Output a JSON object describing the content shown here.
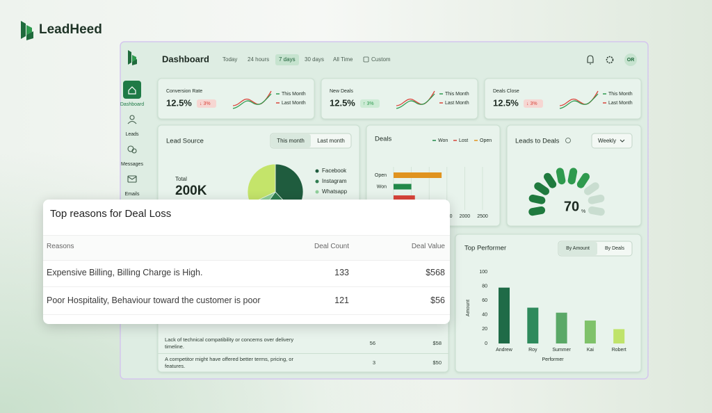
{
  "brand": "LeadHeed",
  "header": {
    "title": "Dashboard",
    "ranges": [
      "Today",
      "24 hours",
      "7 days",
      "30 days",
      "All Time",
      "Custom"
    ],
    "avatar": "OR"
  },
  "sidebar": [
    "Dashboard",
    "Leads",
    "Messages",
    "Emails"
  ],
  "kpi_legend": [
    "This Month",
    "Last Month"
  ],
  "kpis": [
    {
      "label": "Conversion Rate",
      "value": "12.5%",
      "change": "↓ 3%"
    },
    {
      "label": "New Deals",
      "value": "12.5%",
      "change": "↑ 3%"
    },
    {
      "label": "Deals Close",
      "value": "12.5%",
      "change": "↓ 3%"
    }
  ],
  "lead_source": {
    "title": "Lead Source",
    "tabs": [
      "This month",
      "Last month"
    ],
    "total_label": "Total",
    "total": "200K",
    "chart_data": {
      "type": "pie",
      "categories": [
        "Facebook",
        "Instagram",
        "Whatsapp",
        null
      ],
      "values": [
        38,
        22,
        8,
        32
      ],
      "colors": [
        "#1f5c3e",
        "#2f7d50",
        "#8fcf9a",
        "#c4e46a"
      ]
    }
  },
  "deals": {
    "title": "Deals",
    "legend": [
      {
        "name": "Won",
        "color": "#22894a"
      },
      {
        "name": "Lost",
        "color": "#d9443a"
      },
      {
        "name": "Open",
        "color": "#e0931f"
      }
    ],
    "chart_data": {
      "type": "hbar",
      "categories": [
        "Open",
        "Won",
        null
      ],
      "values": [
        1350,
        500,
        600
      ],
      "colors": [
        "#e0931f",
        "#22894a",
        "#d9443a"
      ],
      "xlim": [
        0,
        2500
      ],
      "xticks": [
        0,
        500,
        1000,
        1500,
        2000,
        2500
      ],
      "grid": true
    }
  },
  "leads_to_deals": {
    "title": "Leads to Deals",
    "period": "Weekly",
    "chart_data": {
      "type": "gauge",
      "value": 70,
      "unit": "%"
    }
  },
  "top_performer": {
    "title": "Top Performer",
    "tabs": [
      "By Amount",
      "By Deals"
    ],
    "chart_data": {
      "type": "bar",
      "categories": [
        "Andrew",
        "Roy",
        "Summer",
        "Kai",
        "Robert"
      ],
      "values": [
        78,
        50,
        43,
        32,
        20
      ],
      "colors": [
        "#1f6b47",
        "#2e8a5c",
        "#5aa867",
        "#7fc26a",
        "#bfe36a"
      ],
      "ylim": [
        0,
        100
      ],
      "yticks": [
        0,
        20,
        40,
        60,
        80,
        100
      ],
      "xlabel": "Performer",
      "ylabel": "Amount"
    }
  },
  "deal_loss_background": {
    "rows": [
      [
        "Lack of technical compatibility or concerns over delivery timeline.",
        56,
        "$58"
      ],
      [
        "A competitor might have offered better terms, pricing, or features.",
        3,
        "$50"
      ]
    ]
  },
  "deal_loss_card": {
    "title": "Top reasons for Deal Loss",
    "columns": [
      "Reasons",
      "Deal Count",
      "Deal Value"
    ],
    "rows": [
      [
        "Expensive Billing, Billing Charge is High.",
        133,
        "$568"
      ],
      [
        "Poor Hospitality, Behaviour toward the customer is poor",
        121,
        "$56"
      ]
    ]
  }
}
